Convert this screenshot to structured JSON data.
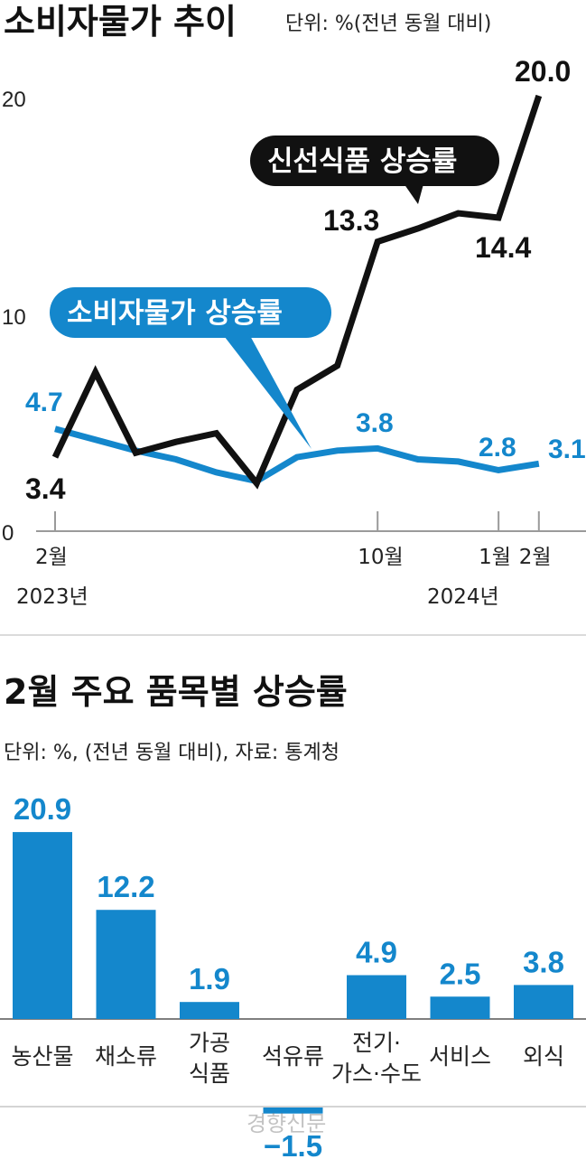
{
  "colors": {
    "blue": "#1487cc",
    "black": "#111111",
    "axis": "#9a9a9a"
  },
  "chart_data": [
    {
      "type": "line",
      "title": "소비자물가 추이",
      "unit": "단위: %(전년 동월 대비)",
      "ylim": [
        0,
        20
      ],
      "y_ticks": [
        0,
        10,
        20
      ],
      "x": [
        "2023-02",
        "2023-03",
        "2023-04",
        "2023-05",
        "2023-06",
        "2023-07",
        "2023-08",
        "2023-09",
        "2023-10",
        "2023-11",
        "2023-12",
        "2024-01",
        "2024-02"
      ],
      "x_tick_labels": [
        {
          "index": 0,
          "month": "2월",
          "year": "2023년"
        },
        {
          "index": 8,
          "month": "10월",
          "year": ""
        },
        {
          "index": 11,
          "month": "1월",
          "year": "2024년"
        },
        {
          "index": 12,
          "month": "2월",
          "year": ""
        }
      ],
      "series": [
        {
          "name": "신선식품 상승률",
          "color": "#111111",
          "values": [
            3.4,
            7.3,
            3.6,
            4.1,
            4.5,
            2.2,
            6.5,
            7.6,
            13.3,
            13.9,
            14.6,
            14.4,
            20.0
          ],
          "labels": [
            {
              "index": 0,
              "text": "3.4"
            },
            {
              "index": 8,
              "text": "13.3"
            },
            {
              "index": 11,
              "text": "14.4"
            },
            {
              "index": 12,
              "text": "20.0"
            }
          ]
        },
        {
          "name": "소비자물가 상승률",
          "color": "#1487cc",
          "values": [
            4.7,
            4.2,
            3.7,
            3.3,
            2.7,
            2.3,
            3.4,
            3.7,
            3.8,
            3.3,
            3.2,
            2.8,
            3.1
          ],
          "labels": [
            {
              "index": 0,
              "text": "4.7"
            },
            {
              "index": 8,
              "text": "3.8"
            },
            {
              "index": 11,
              "text": "2.8"
            },
            {
              "index": 12,
              "text": "3.1"
            }
          ]
        }
      ]
    },
    {
      "type": "bar",
      "title": "2월 주요 품목별 상승률",
      "unit": "단위: %, (전년 동월 대비), 자료: 통계청",
      "categories": [
        [
          "농산물"
        ],
        [
          "채소류"
        ],
        [
          "가공",
          "식품"
        ],
        [
          "석유류"
        ],
        [
          "전기·",
          "가스·수도"
        ],
        [
          "서비스"
        ],
        [
          "외식"
        ]
      ],
      "values": [
        20.9,
        12.2,
        1.9,
        -1.5,
        4.9,
        2.5,
        3.8
      ],
      "value_labels": [
        "20.9",
        "12.2",
        "1.9",
        "−1.5",
        "4.9",
        "2.5",
        "3.8"
      ],
      "color": "#1487cc"
    }
  ],
  "watermark": "경향신문"
}
